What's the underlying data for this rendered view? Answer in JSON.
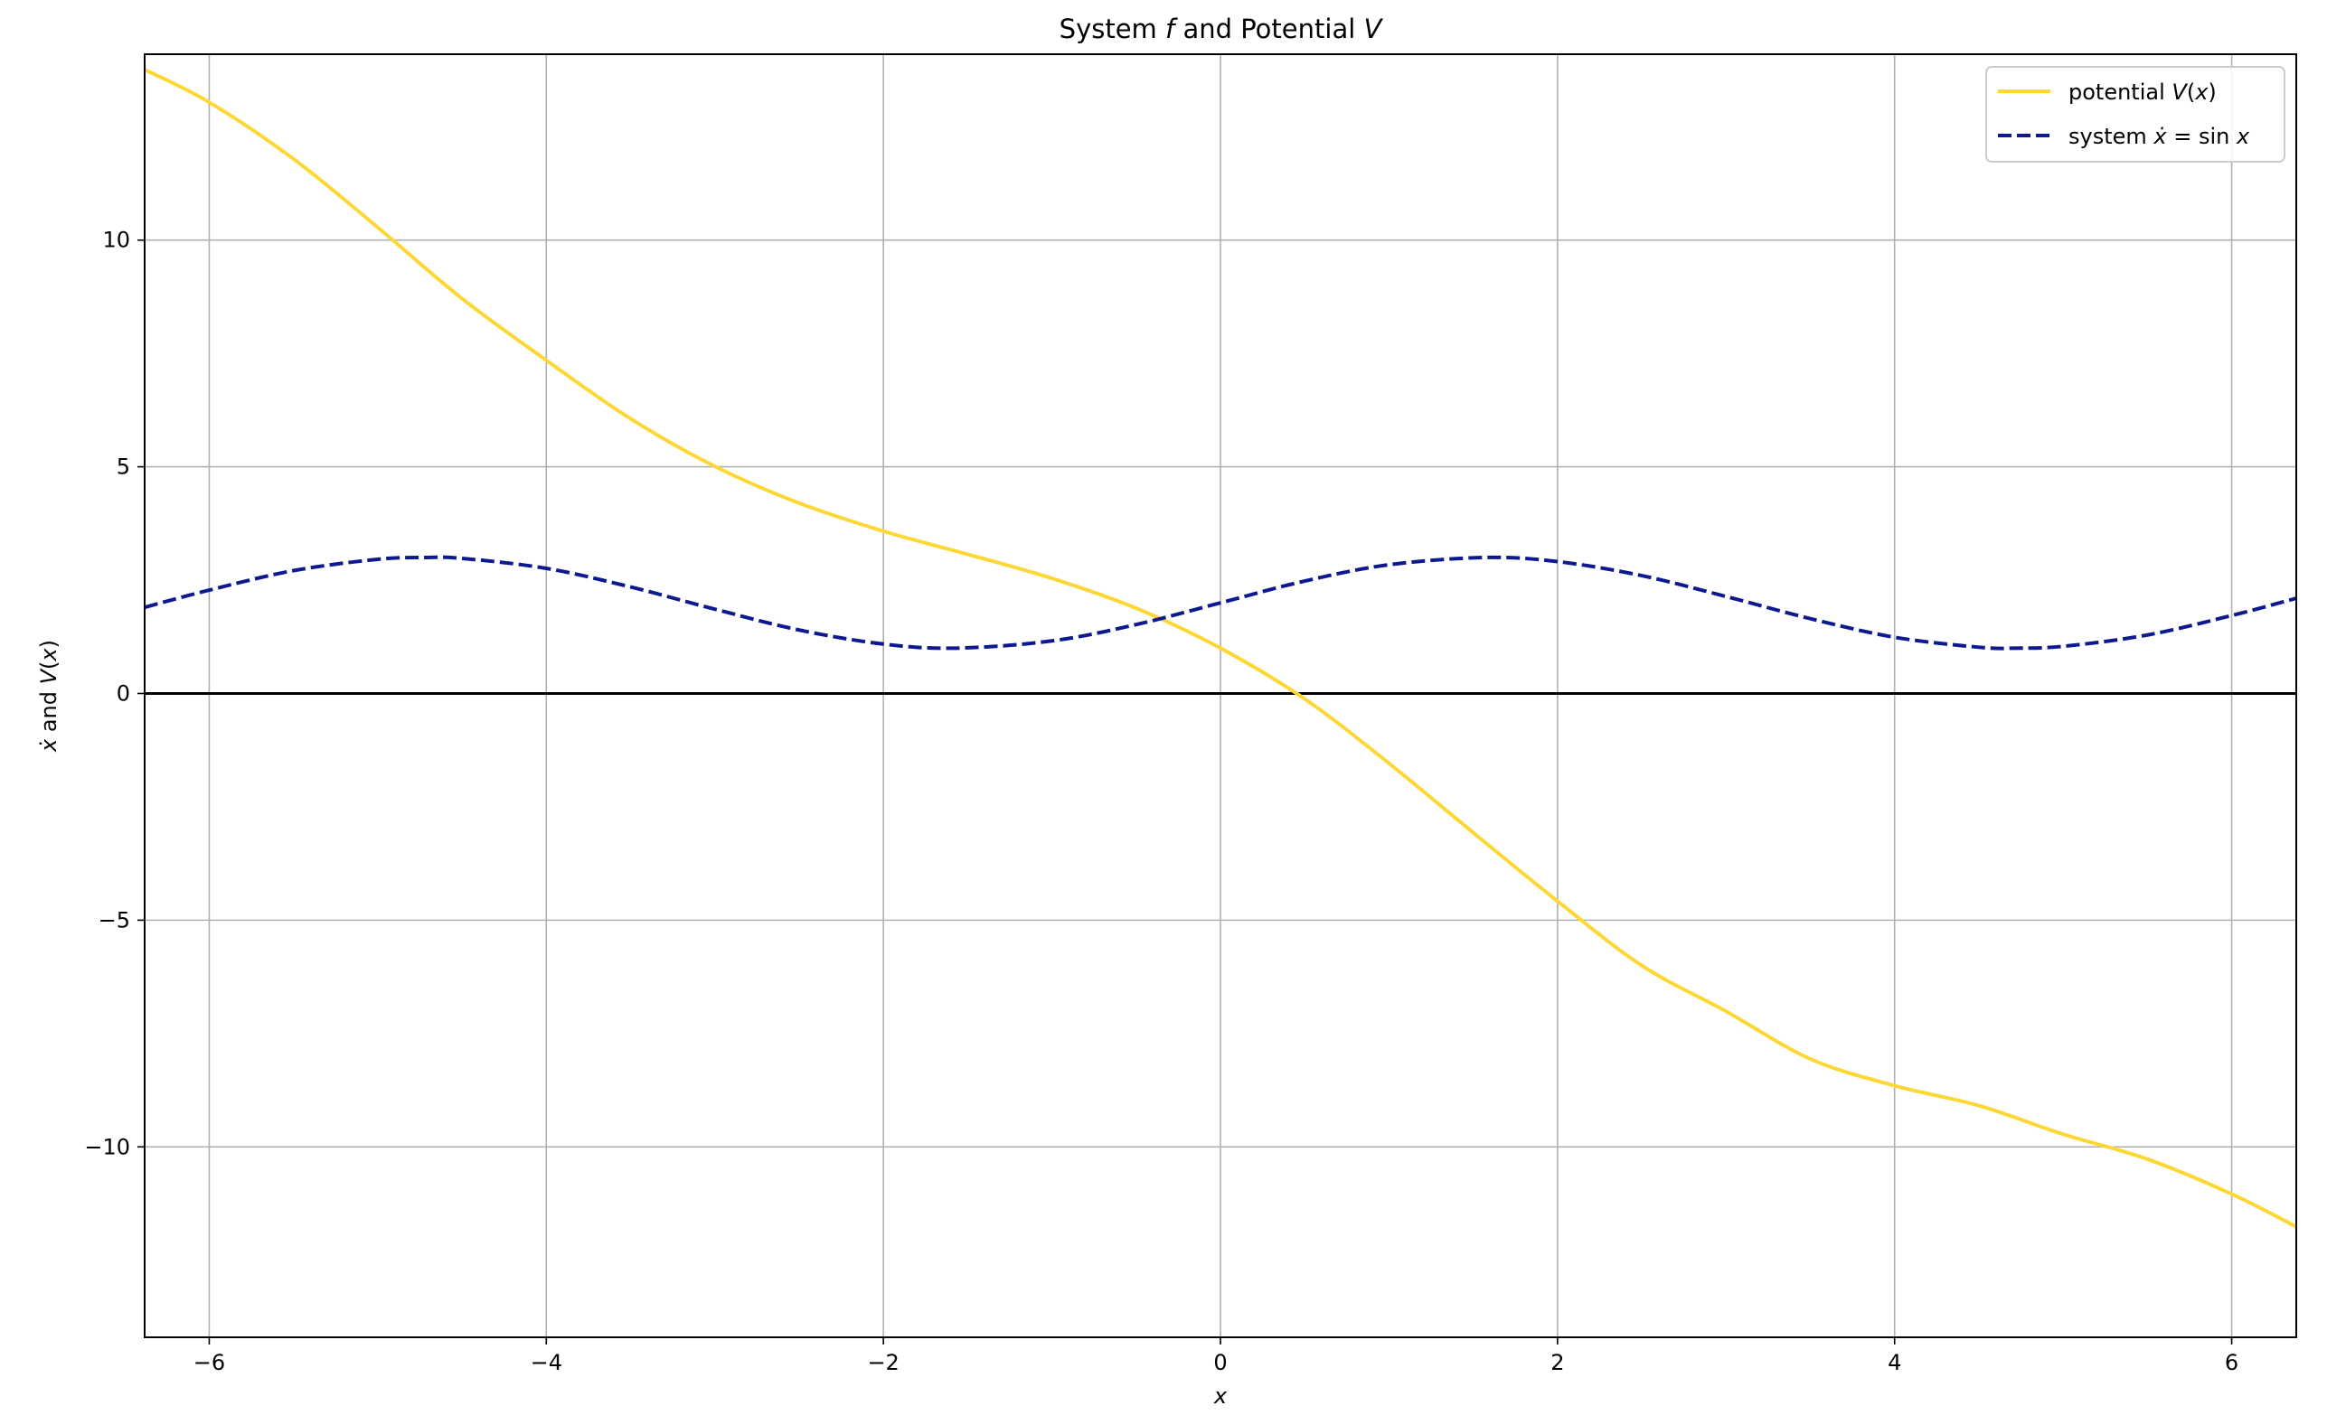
{
  "chart_data": {
    "type": "line",
    "title": {
      "pre": "System ",
      "f": "f",
      "mid": " and Potential ",
      "V": "V"
    },
    "xlabel": "x",
    "ylabel": {
      "x": "ẋ",
      "mid": " and ",
      "V": "V",
      "open": "(",
      "arg": "x",
      "close": ")"
    },
    "xlim": [
      -6.3832,
      6.3832
    ],
    "ylim": [
      -14.2,
      14.1
    ],
    "xticks": [
      -6,
      -4,
      -2,
      0,
      2,
      4,
      6
    ],
    "yticks": [
      -10,
      -5,
      0,
      5,
      10
    ],
    "xtick_labels": [
      "−6",
      "−4",
      "−2",
      "0",
      "2",
      "4",
      "6"
    ],
    "ytick_labels": [
      "−10",
      "−5",
      "0",
      "5",
      "10"
    ],
    "grid": true,
    "zero_line": 0,
    "legend_position": "top-right",
    "legend": [
      {
        "text": "potential ",
        "var": "V",
        "open": "(",
        "arg": "x",
        "close": ")"
      },
      {
        "text": "system ",
        "lhs": "ẋ",
        "eq": " = sin ",
        "rhs": "x"
      }
    ],
    "series": [
      {
        "style": "solid",
        "color": "#fdd835",
        "x": [
          -6.3832,
          -6.0,
          -5.5,
          -5.0,
          -4.5,
          -4.0,
          -3.5,
          -3.0,
          -2.5,
          -2.0,
          -1.5,
          -1.0,
          -0.5,
          0.0,
          0.5,
          1.0,
          1.5,
          2.0,
          2.5,
          3.0,
          3.5,
          4.0,
          4.5,
          5.0,
          5.5,
          6.0,
          6.3832
        ],
        "y": [
          13.76,
          13.04,
          11.79,
          10.28,
          8.71,
          7.35,
          6.06,
          5.01,
          4.2,
          3.58,
          3.07,
          2.54,
          1.88,
          1.0,
          -0.12,
          -1.54,
          -3.07,
          -4.58,
          -6.0,
          -7.01,
          -8.06,
          -8.65,
          -9.09,
          -9.72,
          -10.27,
          -11.04,
          -11.76
        ]
      },
      {
        "style": "dashed",
        "color": "#0d1a8f",
        "x": [
          -6.3832,
          -6.0,
          -5.5,
          -5.0,
          -4.7124,
          -4.5,
          -4.0,
          -3.5,
          -3.0,
          -2.5,
          -2.0,
          -1.5708,
          -1.0,
          -0.5,
          0.0,
          0.5,
          1.0,
          1.5708,
          2.0,
          2.5,
          3.0,
          3.5,
          4.0,
          4.5,
          4.7124,
          5.0,
          5.5,
          6.0,
          6.3832
        ],
        "y": [
          1.9,
          2.28,
          2.71,
          2.96,
          3.0,
          2.98,
          2.76,
          2.35,
          1.86,
          1.4,
          1.09,
          1.0,
          1.16,
          1.52,
          2.0,
          2.48,
          2.84,
          3.0,
          2.91,
          2.6,
          2.14,
          1.65,
          1.24,
          1.02,
          1.0,
          1.04,
          1.29,
          1.72,
          2.1
        ]
      }
    ]
  }
}
